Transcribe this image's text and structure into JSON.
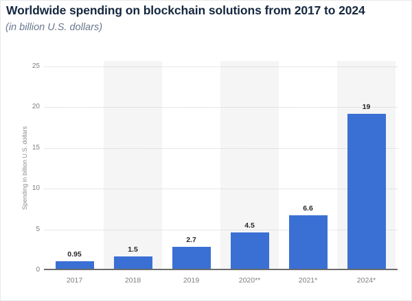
{
  "header": {
    "title": "Worldwide spending on blockchain solutions from 2017 to 2024",
    "subtitle": "(in billion U.S. dollars)"
  },
  "chart_data": {
    "type": "bar",
    "title": "Worldwide spending on blockchain solutions from 2017 to 2024",
    "subtitle": "(in billion U.S. dollars)",
    "categories": [
      "2017",
      "2018",
      "2019",
      "2020**",
      "2021*",
      "2024*"
    ],
    "values": [
      0.95,
      1.5,
      2.7,
      4.5,
      6.6,
      19
    ],
    "value_labels": [
      "0.95",
      "1.5",
      "2.7",
      "4.5",
      "6.6",
      "19"
    ],
    "xlabel": "",
    "ylabel": "Spending in billion U.S. dollars",
    "ylim": [
      0,
      25
    ],
    "yticks": [
      0,
      5,
      10,
      15,
      20,
      25
    ],
    "grid": "horizontal-dotted",
    "legend": "none",
    "colors": {
      "bar": "#3a70d4",
      "column_band": "#f5f5f6",
      "gridline": "#cfcfcf",
      "axis_line": "#6b6b6b",
      "title_text": "#15273f",
      "subtitle_text": "#68788d",
      "tick_text": "#7d7d7d",
      "value_text": "#262626"
    }
  }
}
